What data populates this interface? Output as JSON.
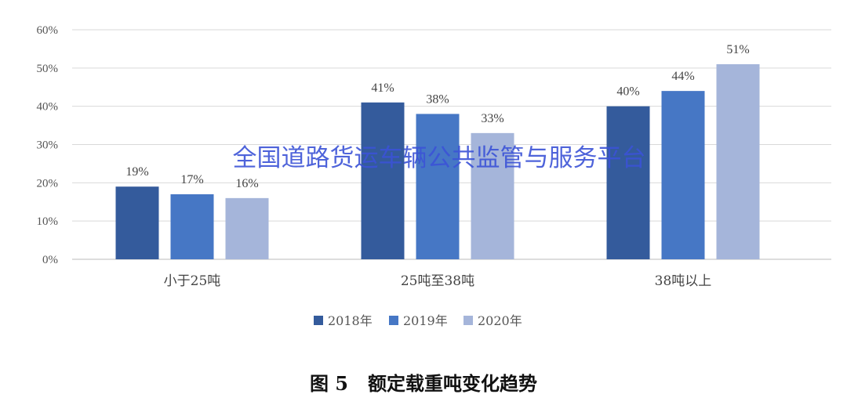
{
  "chart_data": {
    "type": "bar",
    "title": "",
    "caption": "图 5   额定载重吨变化趋势",
    "xlabel": "",
    "ylabel": "",
    "categories": [
      "小于25吨",
      "25吨至38吨",
      "38吨以上"
    ],
    "series": [
      {
        "name": "2018年",
        "values": [
          19,
          41,
          40
        ],
        "color": "#345b9c"
      },
      {
        "name": "2019年",
        "values": [
          17,
          38,
          44
        ],
        "color": "#4677c5"
      },
      {
        "name": "2020年",
        "values": [
          16,
          33,
          51
        ],
        "color": "#a5b5da"
      }
    ],
    "value_suffix": "%",
    "ylim": [
      0,
      60
    ],
    "yticks": [
      "0%",
      "10%",
      "20%",
      "30%",
      "40%",
      "50%",
      "60%"
    ],
    "grid": true,
    "legend_position": "bottom",
    "watermark": "全国道路货运车辆公共监管与服务平台"
  }
}
